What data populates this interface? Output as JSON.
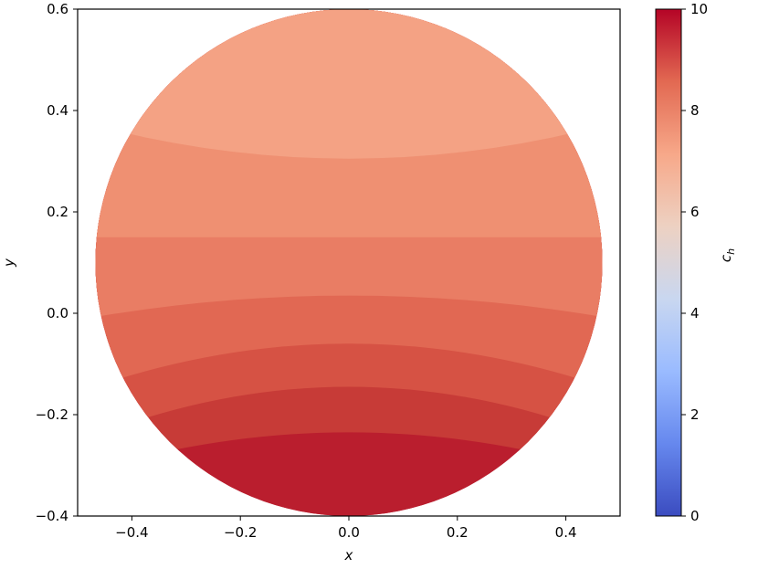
{
  "chart_data": {
    "type": "contour",
    "title": "",
    "xlabel": "x",
    "ylabel": "y",
    "xlim": [
      -0.5,
      0.5
    ],
    "ylim": [
      -0.4,
      0.6
    ],
    "x_ticks": [
      -0.4,
      -0.2,
      0.0,
      0.2,
      0.4
    ],
    "y_ticks": [
      -0.4,
      -0.2,
      0.0,
      0.2,
      0.4,
      0.6
    ],
    "x_tick_labels": [
      "−0.4",
      "−0.2",
      "0.0",
      "0.2",
      "0.4"
    ],
    "y_tick_labels": [
      "−0.4",
      "−0.2",
      "0.0",
      "0.2",
      "0.4",
      "0.6"
    ],
    "domain": {
      "shape": "circle",
      "center": [
        0.0,
        0.1
      ],
      "radius": 0.5
    },
    "levels": [
      {
        "y_boundary_at_center": 0.305,
        "y_boundary_at_edge": 0.39,
        "color": "#f4a284"
      },
      {
        "y_boundary_at_center": 0.15,
        "y_boundary_at_edge": 0.15,
        "color": "#ef9072"
      },
      {
        "y_boundary_at_center": 0.035,
        "y_boundary_at_edge": -0.02,
        "color": "#e97d64"
      },
      {
        "y_boundary_at_center": -0.06,
        "y_boundary_at_edge": -0.17,
        "color": "#e16853"
      },
      {
        "y_boundary_at_center": -0.145,
        "y_boundary_at_edge": -0.27,
        "color": "#d65244"
      },
      {
        "y_boundary_at_center": -0.235,
        "y_boundary_at_edge": -0.33,
        "color": "#c73b37"
      },
      {
        "y_boundary_at_center": -0.4,
        "y_boundary_at_edge": -0.4,
        "color": "#ba1e2e"
      }
    ],
    "colorbar": {
      "label": "c_h",
      "label_main": "c",
      "label_sub": "h",
      "range": [
        0,
        10
      ],
      "ticks": [
        0,
        2,
        4,
        6,
        8,
        10
      ],
      "tick_labels": [
        "0",
        "2",
        "4",
        "6",
        "8",
        "10"
      ],
      "colormap": "coolwarm",
      "stops": [
        "#3b4cc0",
        "#6688ee",
        "#9abbff",
        "#c9d7f0",
        "#edd1c2",
        "#f7a889",
        "#e26952",
        "#b40426"
      ]
    }
  }
}
